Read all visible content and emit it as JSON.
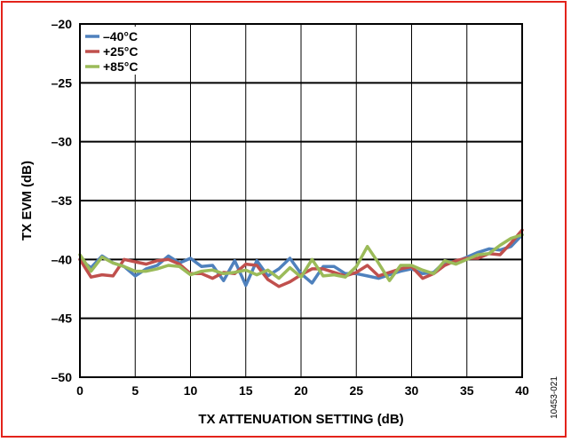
{
  "figure_code": "10453-021",
  "chart_data": {
    "type": "line",
    "xlabel": "TX ATTENUATION SETTING (dB)",
    "ylabel": "TX EVM (dB)",
    "xlim": [
      0,
      40
    ],
    "ylim": [
      -50,
      -20
    ],
    "xticks": [
      0,
      5,
      10,
      15,
      20,
      25,
      30,
      35,
      40
    ],
    "yticks": [
      -20,
      -25,
      -30,
      -35,
      -40,
      -45,
      -50
    ],
    "xtick_labels": [
      "0",
      "5",
      "10",
      "15",
      "20",
      "25",
      "30",
      "35",
      "40"
    ],
    "ytick_labels": [
      "–20",
      "–25",
      "–30",
      "–35",
      "–40",
      "–45",
      "–50"
    ],
    "grid": true,
    "legend_position": "top-left",
    "x": [
      0,
      1,
      2,
      3,
      4,
      5,
      6,
      7,
      8,
      9,
      10,
      11,
      12,
      13,
      14,
      15,
      16,
      17,
      18,
      19,
      20,
      21,
      22,
      23,
      24,
      25,
      26,
      27,
      28,
      29,
      30,
      31,
      32,
      33,
      34,
      35,
      36,
      37,
      38,
      39,
      40
    ],
    "series": [
      {
        "name": "–40°C",
        "color": "#4f81bd",
        "values": [
          -40.0,
          -40.7,
          -39.7,
          -40.3,
          -40.6,
          -41.4,
          -40.8,
          -40.5,
          -39.7,
          -40.3,
          -39.9,
          -40.6,
          -40.5,
          -41.8,
          -40.1,
          -42.2,
          -40.1,
          -41.4,
          -40.8,
          -39.9,
          -41.2,
          -42.0,
          -40.6,
          -40.6,
          -41.2,
          -41.2,
          -41.4,
          -41.6,
          -41.3,
          -41.0,
          -40.8,
          -41.2,
          -41.1,
          -40.2,
          -40.2,
          -39.8,
          -39.4,
          -39.1,
          -39.2,
          -38.9,
          -37.9
        ]
      },
      {
        "name": "+25°C",
        "color": "#c0504d",
        "values": [
          -40.0,
          -41.5,
          -41.3,
          -41.4,
          -40.0,
          -40.2,
          -40.4,
          -40.1,
          -40.0,
          -40.4,
          -41.2,
          -41.2,
          -41.6,
          -41.1,
          -41.2,
          -40.4,
          -40.5,
          -41.7,
          -42.3,
          -41.9,
          -41.3,
          -40.8,
          -40.8,
          -41.1,
          -41.4,
          -41.1,
          -40.5,
          -41.4,
          -41.1,
          -40.8,
          -40.6,
          -41.6,
          -41.2,
          -40.5,
          -40.1,
          -39.9,
          -39.9,
          -39.5,
          -39.6,
          -38.6,
          -37.5
        ]
      },
      {
        "name": "+85°C",
        "color": "#9bbb59",
        "values": [
          -39.6,
          -41.0,
          -39.8,
          -40.3,
          -40.6,
          -41.0,
          -41.0,
          -40.8,
          -40.5,
          -40.6,
          -41.3,
          -41.0,
          -40.9,
          -41.2,
          -41.1,
          -40.9,
          -41.3,
          -40.9,
          -41.6,
          -40.7,
          -41.5,
          -40.0,
          -41.4,
          -41.3,
          -41.5,
          -40.6,
          -38.9,
          -40.3,
          -41.8,
          -40.5,
          -40.5,
          -40.9,
          -41.2,
          -40.1,
          -40.4,
          -40.0,
          -39.6,
          -39.5,
          -38.8,
          -38.2,
          -37.9
        ]
      }
    ]
  }
}
